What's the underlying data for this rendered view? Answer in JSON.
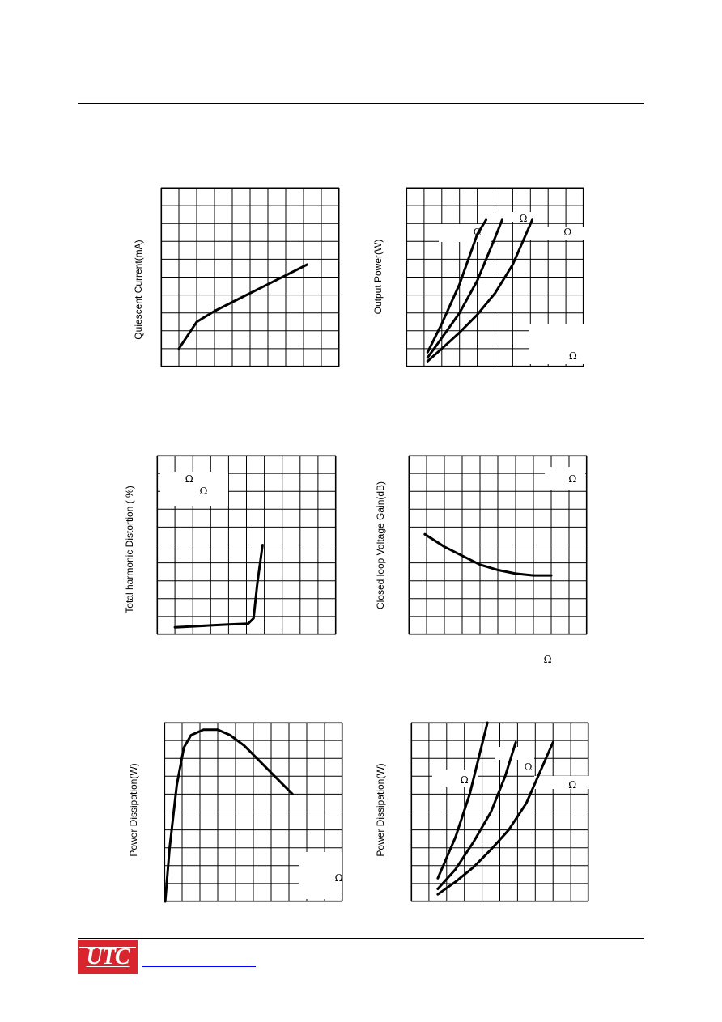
{
  "page": {
    "logo_text": "UTC",
    "omega_symbol": "Ω"
  },
  "chart_data": [
    {
      "type": "line",
      "title": "",
      "xlabel": "",
      "ylabel": "Quiescent Current(mA)",
      "grid": true,
      "xlim": [
        0,
        10
      ],
      "ylim": [
        0,
        10
      ],
      "series": [
        {
          "x": [
            1,
            2,
            3,
            4,
            5,
            6,
            7,
            8.2
          ],
          "y": [
            1,
            2.5,
            3.1,
            3.6,
            4.1,
            4.6,
            5.1,
            5.7
          ]
        }
      ],
      "annotations": []
    },
    {
      "type": "line",
      "title": "",
      "xlabel": "",
      "ylabel": "Output Power(W)",
      "grid": true,
      "xlim": [
        0,
        10
      ],
      "ylim": [
        0,
        10
      ],
      "series": [
        {
          "x": [
            1.2,
            2,
            3,
            4,
            4.5
          ],
          "y": [
            0.8,
            2.4,
            4.6,
            7.4,
            8.2
          ]
        },
        {
          "x": [
            1.2,
            2,
            3,
            4,
            5,
            5.4
          ],
          "y": [
            0.5,
            1.6,
            3.0,
            4.8,
            7.2,
            8.2
          ]
        },
        {
          "x": [
            1.2,
            2,
            3,
            4,
            5,
            6,
            7.1
          ],
          "y": [
            0.3,
            1.0,
            1.9,
            2.9,
            4.1,
            5.7,
            8.2
          ]
        }
      ],
      "annotations": [
        {
          "x": 4.0,
          "y": 7.5
        },
        {
          "x": 6.6,
          "y": 8.3
        },
        {
          "x": 9.1,
          "y": 7.5
        },
        {
          "x": 9.4,
          "y": 0.6
        }
      ]
    },
    {
      "type": "line",
      "title": "",
      "xlabel": "",
      "ylabel": "Total harmonic Distortion ( %)",
      "grid": true,
      "xlim": [
        0,
        10
      ],
      "ylim": [
        0,
        10
      ],
      "series": [
        {
          "x": [
            1,
            2,
            3,
            4,
            5.1,
            5.4,
            5.6,
            5.9
          ],
          "y": [
            0.4,
            0.45,
            0.5,
            0.55,
            0.6,
            0.9,
            2.8,
            5.0
          ]
        }
      ],
      "annotations": [
        {
          "x": 1.8,
          "y": 8.7
        },
        {
          "x": 2.6,
          "y": 8.0
        }
      ]
    },
    {
      "type": "line",
      "title": "",
      "xlabel": "",
      "ylabel": "Closed loop Voltage Gain(dB)",
      "grid": true,
      "xlim": [
        0,
        10
      ],
      "ylim": [
        0,
        10
      ],
      "series": [
        {
          "x": [
            0.9,
            2,
            3,
            4,
            5,
            6,
            7,
            8
          ],
          "y": [
            5.6,
            4.9,
            4.4,
            3.9,
            3.6,
            3.4,
            3.3,
            3.3
          ]
        }
      ],
      "annotations": [
        {
          "x": 9.2,
          "y": 8.7
        },
        {
          "x": 7.8,
          "y": -1.4
        }
      ]
    },
    {
      "type": "line",
      "title": "",
      "xlabel": "",
      "ylabel": "Power Dissipation(W)",
      "grid": true,
      "xlim": [
        0,
        10
      ],
      "ylim": [
        0,
        10
      ],
      "series": [
        {
          "x": [
            0.05,
            0.3,
            0.7,
            1.1,
            1.5,
            2.2,
            3.0,
            3.7,
            4.5,
            7.2
          ],
          "y": [
            0.0,
            3.0,
            6.5,
            8.6,
            9.3,
            9.6,
            9.6,
            9.3,
            8.7,
            6.0
          ]
        }
      ],
      "annotations": [
        {
          "x": 9.8,
          "y": 1.3
        }
      ]
    },
    {
      "type": "line",
      "title": "",
      "xlabel": "",
      "ylabel": "Power Dissipation(W)",
      "grid": true,
      "xlim": [
        0,
        10
      ],
      "ylim": [
        0,
        10
      ],
      "series": [
        {
          "x": [
            1.5,
            2.5,
            3.3,
            3.9,
            4.3
          ],
          "y": [
            1.3,
            3.6,
            6.0,
            8.4,
            10.0
          ]
        },
        {
          "x": [
            1.5,
            2.5,
            3.5,
            4.5,
            5.3,
            5.9
          ],
          "y": [
            0.7,
            1.8,
            3.3,
            5.0,
            7.0,
            8.9
          ]
        },
        {
          "x": [
            1.5,
            2.5,
            3.5,
            4.5,
            5.5,
            6.5,
            8.0
          ],
          "y": [
            0.4,
            1.1,
            1.9,
            2.9,
            4.0,
            5.5,
            8.9
          ]
        }
      ],
      "annotations": [
        {
          "x": 3.0,
          "y": 6.8
        },
        {
          "x": 6.6,
          "y": 7.5
        },
        {
          "x": 9.1,
          "y": 6.5
        }
      ]
    }
  ]
}
